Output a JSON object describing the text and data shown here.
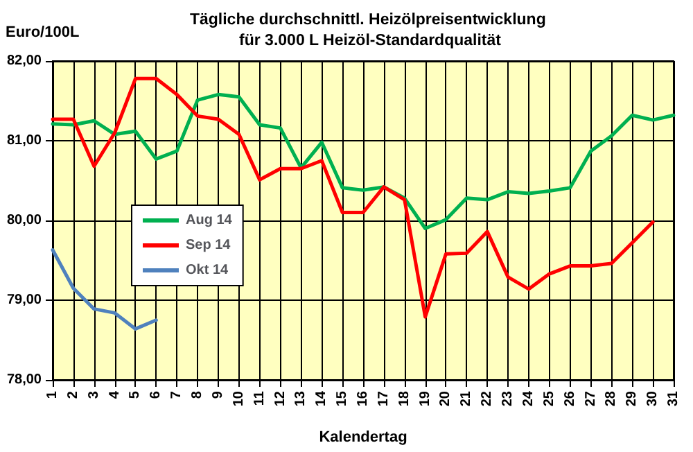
{
  "chart_data": {
    "type": "line",
    "title": "Tägliche durchschnittl. Heizölpreisentwicklung für 3.000 L Heizöl-Standardqualität",
    "xlabel": "Kalendertag",
    "ylabel": "Euro/100L",
    "categories": [
      "1",
      "2",
      "3",
      "4",
      "5",
      "6",
      "7",
      "8",
      "9",
      "10",
      "11",
      "12",
      "13",
      "14",
      "15",
      "16",
      "17",
      "18",
      "19",
      "20",
      "21",
      "22",
      "23",
      "24",
      "25",
      "26",
      "27",
      "28",
      "29",
      "30",
      "31"
    ],
    "series": [
      {
        "name": "Aug 14",
        "color": "#00b050",
        "values": [
          81.21,
          81.2,
          81.25,
          81.08,
          81.12,
          80.77,
          80.87,
          81.51,
          81.58,
          81.55,
          81.2,
          81.16,
          80.66,
          80.98,
          80.41,
          80.38,
          80.42,
          80.28,
          79.9,
          80.01,
          80.28,
          80.26,
          80.36,
          80.34,
          80.37,
          80.41,
          80.87,
          81.06,
          81.32,
          81.26,
          81.32
        ]
      },
      {
        "name": "Sep 14",
        "color": "#ff0000",
        "values": [
          81.27,
          81.27,
          80.68,
          81.1,
          81.78,
          81.78,
          81.58,
          81.31,
          81.27,
          81.08,
          80.51,
          80.65,
          80.65,
          80.75,
          80.1,
          80.1,
          80.42,
          80.26,
          78.79,
          79.58,
          79.59,
          79.86,
          79.29,
          79.14,
          79.33,
          79.43,
          79.43,
          79.46,
          79.72,
          79.98,
          null
        ]
      },
      {
        "name": "Okt 14",
        "color": "#4f81bd",
        "values": [
          79.63,
          79.15,
          78.89,
          78.84,
          78.64,
          78.75,
          null,
          null,
          null,
          null,
          null,
          null,
          null,
          null,
          null,
          null,
          null,
          null,
          null,
          null,
          null,
          null,
          null,
          null,
          null,
          null,
          null,
          null,
          null,
          null,
          null
        ]
      }
    ],
    "ylim": [
      78,
      82
    ],
    "yticks": [
      {
        "value": 78,
        "label": "78,00"
      },
      {
        "value": 79,
        "label": "79,00"
      },
      {
        "value": 80,
        "label": "80,00"
      },
      {
        "value": 81,
        "label": "81,00"
      },
      {
        "value": 82,
        "label": "82,00"
      }
    ],
    "grid": true,
    "legend": "left",
    "marker": "none",
    "line_style": "solid"
  }
}
